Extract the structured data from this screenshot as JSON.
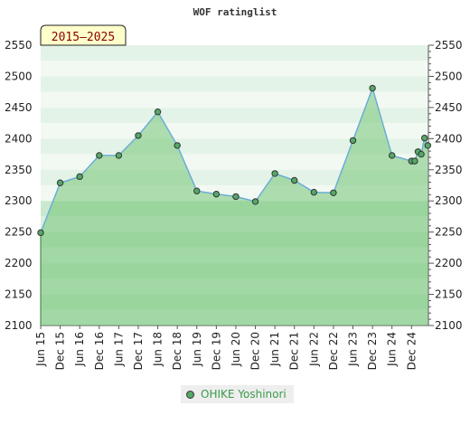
{
  "chart_data": {
    "type": "area",
    "title": "WOF ratinglist",
    "period_badge": "2015–2025",
    "ylim": [
      2100,
      2550
    ],
    "y_ticks": [
      2100,
      2150,
      2200,
      2250,
      2300,
      2350,
      2400,
      2450,
      2500,
      2550
    ],
    "x_tick_labels": [
      "Jun 15",
      "Dec 15",
      "Jun 16",
      "Dec 16",
      "Jun 17",
      "Dec 17",
      "Jun 18",
      "Dec 18",
      "Jun 19",
      "Dec 19",
      "Jun 20",
      "Dec 20",
      "Jun 21",
      "Dec 21",
      "Jun 22",
      "Dec 22",
      "Jun 23",
      "Dec 23",
      "Jun 24",
      "Dec 24"
    ],
    "grid": true,
    "legend_position": "bottom-center",
    "colors": {
      "line": "#6baed6",
      "fill": "#74c476",
      "marker": "#55a868",
      "badge_bg": "#ffffcc"
    },
    "series": [
      {
        "name": "OHIKE Yoshinori",
        "points": [
          {
            "x": "Jun 15",
            "y": 2249
          },
          {
            "x": "Dec 15",
            "y": 2329
          },
          {
            "x": "Jun 16",
            "y": 2339
          },
          {
            "x": "Dec 16",
            "y": 2373
          },
          {
            "x": "Jun 17",
            "y": 2373
          },
          {
            "x": "Dec 17",
            "y": 2405
          },
          {
            "x": "Jun 18",
            "y": 2443
          },
          {
            "x": "Dec 18",
            "y": 2389
          },
          {
            "x": "Jun 19",
            "y": 2316
          },
          {
            "x": "Dec 19",
            "y": 2311
          },
          {
            "x": "Jun 20",
            "y": 2307
          },
          {
            "x": "Dec 20",
            "y": 2299
          },
          {
            "x": "Jun 21",
            "y": 2344
          },
          {
            "x": "Dec 21",
            "y": 2333
          },
          {
            "x": "Jun 22",
            "y": 2314
          },
          {
            "x": "Dec 22",
            "y": 2313
          },
          {
            "x": "Jun 23",
            "y": 2397
          },
          {
            "x": "Dec 23",
            "y": 2481
          },
          {
            "x": "Jun 24",
            "y": 2373
          },
          {
            "x": "Dec 24",
            "y": 2364
          },
          {
            "x": "Jan 25",
            "y": 2364
          },
          {
            "x": "Feb 25",
            "y": 2379
          },
          {
            "x": "Mar 25",
            "y": 2375
          },
          {
            "x": "Apr 25",
            "y": 2401
          },
          {
            "x": "May 25",
            "y": 2389
          }
        ]
      }
    ]
  }
}
